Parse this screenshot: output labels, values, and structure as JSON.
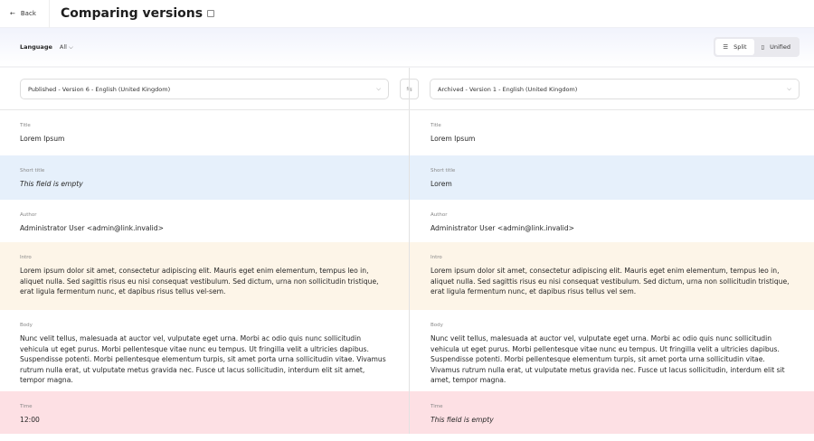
{
  "header": {
    "back_label": "Back",
    "title": "Comparing versions"
  },
  "toolbar": {
    "language_label": "Language",
    "language_value": "All",
    "split_label": "Split",
    "unified_label": "Unified"
  },
  "selectors": {
    "left": "Published - Version 6 - English (United Kingdom)",
    "right": "Archived - Version 1 - English (United Kingdom)"
  },
  "fields": [
    {
      "label": "Title",
      "left": "Lorem Ipsum",
      "right": "Lorem Ipsum"
    },
    {
      "label": "Short title",
      "left": "This field is empty",
      "right": "Lorem"
    },
    {
      "label": "Author",
      "left_prefix": "Administrator User <",
      "left_link": "admin@link.invalid",
      "left_suffix": ">",
      "right_prefix": "Administrator User <",
      "right_link": "admin@link.invalid",
      "right_suffix": ">"
    },
    {
      "label": "Intro",
      "left": "Lorem ipsum dolor sit amet, consectetur adipiscing elit. Mauris eget enim elementum, tempus leo in, aliquet nulla. Sed sagittis risus eu nisi consequat vestibulum. Sed dictum, urna non sollicitudin tristique, erat ligula fermentum nunc, et dapibus risus tellus vel-sem.",
      "right": "Lorem ipsum dolor sit amet, consectetur adipiscing elit. Mauris eget enim elementum, tempus leo in, aliquet nulla. Sed sagittis risus eu nisi consequat vestibulum. Sed dictum, urna non sollicitudin tristique, erat ligula fermentum nunc, et dapibus risus tellus vel sem."
    },
    {
      "label": "Body",
      "left": "Nunc velit tellus, malesuada at auctor vel, vulputate eget urna. Morbi ac odio quis nunc sollicitudin vehicula ut eget purus. Morbi pellentesque vitae nunc eu tempus. Ut fringilla velit a ultricies dapibus. Suspendisse potenti. Morbi pellentesque elementum turpis, sit amet porta urna sollicitudin vitae. Vivamus rutrum nulla erat, ut vulputate metus gravida nec. Fusce ut lacus sollicitudin, interdum elit sit amet, tempor magna.",
      "right": "Nunc velit tellus, malesuada at auctor vel, vulputate eget urna. Morbi ac odio quis nunc sollicitudin vehicula ut eget purus. Morbi pellentesque vitae nunc eu tempus. Ut fringilla velit a ultricies dapibus. Suspendisse potenti. Morbi pellentesque elementum turpis, sit amet porta urna sollicitudin vitae. Vivamus rutrum nulla erat, ut vulputate metus gravida nec. Fusce ut lacus sollicitudin, interdum elit sit amet, tempor magna."
    },
    {
      "label": "Time",
      "left": "12:00",
      "right": "This field is empty"
    }
  ],
  "colors": {
    "changed": "#e6f0fb",
    "modified": "#fdf5e8",
    "removed": "#fde0e4"
  }
}
